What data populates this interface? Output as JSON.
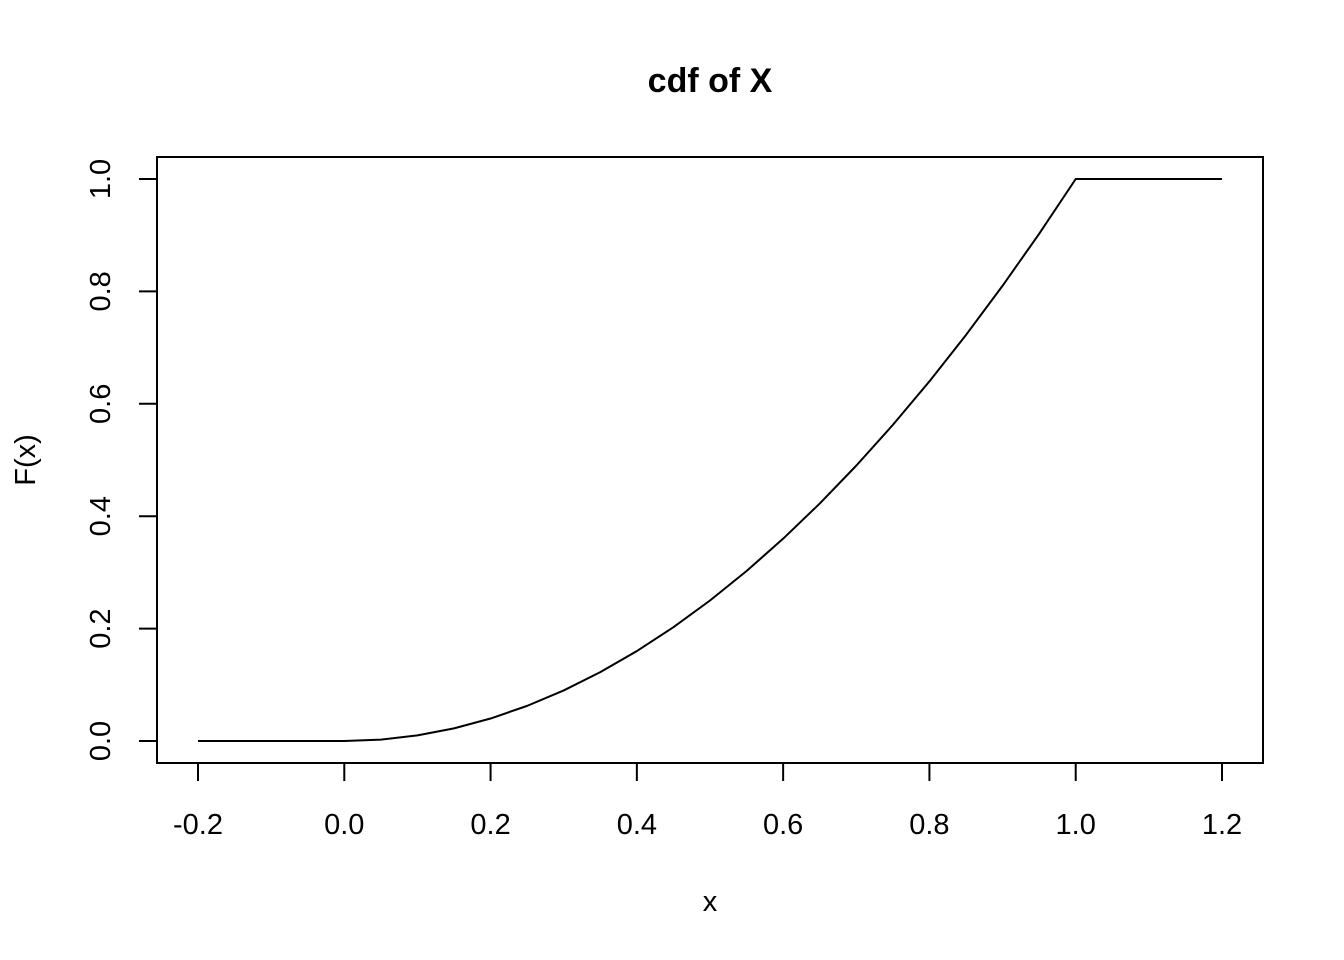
{
  "chart_data": {
    "type": "line",
    "title": "cdf of X",
    "xlabel": "x",
    "ylabel": "F(x)",
    "xlim": [
      -0.2,
      1.2
    ],
    "ylim": [
      0.0,
      1.0
    ],
    "x_ticks": [
      "-0.2",
      "0.0",
      "0.2",
      "0.4",
      "0.6",
      "0.8",
      "1.0",
      "1.2"
    ],
    "y_ticks": [
      "0.0",
      "0.2",
      "0.4",
      "0.6",
      "0.8",
      "1.0"
    ],
    "grid": false,
    "series": [
      {
        "x": [
          -0.2,
          -0.1,
          0.0,
          0.05,
          0.1,
          0.15,
          0.2,
          0.25,
          0.3,
          0.35,
          0.4,
          0.45,
          0.5,
          0.55,
          0.6,
          0.65,
          0.7,
          0.75,
          0.8,
          0.85,
          0.9,
          0.95,
          1.0,
          1.1,
          1.2
        ],
        "y": [
          0.0,
          0.0,
          0.0,
          0.0025,
          0.01,
          0.0225,
          0.04,
          0.0625,
          0.09,
          0.1225,
          0.16,
          0.2025,
          0.25,
          0.3025,
          0.36,
          0.4225,
          0.49,
          0.5625,
          0.64,
          0.7225,
          0.81,
          0.9025,
          1.0,
          1.0,
          1.0
        ],
        "color": "#000000"
      }
    ]
  }
}
